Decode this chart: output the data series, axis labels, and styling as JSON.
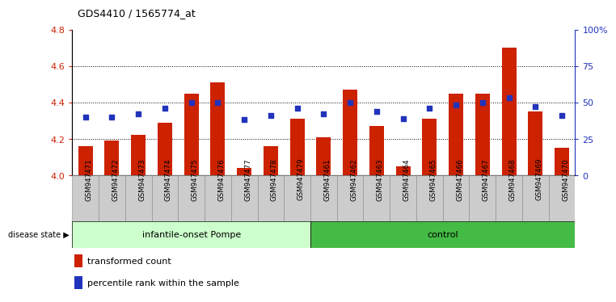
{
  "title": "GDS4410 / 1565774_at",
  "samples": [
    "GSM947471",
    "GSM947472",
    "GSM947473",
    "GSM947474",
    "GSM947475",
    "GSM947476",
    "GSM947477",
    "GSM947478",
    "GSM947479",
    "GSM947461",
    "GSM947462",
    "GSM947463",
    "GSM947464",
    "GSM947465",
    "GSM947466",
    "GSM947467",
    "GSM947468",
    "GSM947469",
    "GSM947470"
  ],
  "bar_values": [
    4.16,
    4.19,
    4.22,
    4.29,
    4.45,
    4.51,
    4.04,
    4.16,
    4.31,
    4.21,
    4.47,
    4.27,
    4.05,
    4.31,
    4.45,
    4.45,
    4.7,
    4.35,
    4.15
  ],
  "dot_values": [
    40,
    40,
    42,
    46,
    50,
    50,
    38,
    41,
    46,
    42,
    50,
    44,
    39,
    46,
    48,
    50,
    53,
    47,
    41
  ],
  "ylim_left": [
    4.0,
    4.8
  ],
  "ylim_right": [
    0,
    100
  ],
  "yticks_left": [
    4.0,
    4.2,
    4.4,
    4.6,
    4.8
  ],
  "yticks_right": [
    0,
    25,
    50,
    75,
    100
  ],
  "ytick_labels_right": [
    "0",
    "25",
    "50",
    "75",
    "100%"
  ],
  "bar_color": "#cc2200",
  "dot_color": "#2233bb",
  "group1_label": "infantile-onset Pompe",
  "group2_label": "control",
  "group1_count": 9,
  "group2_count": 10,
  "group1_color": "#ccffcc",
  "group2_color": "#44bb44",
  "left_axis_color": "#cc2200",
  "right_axis_color": "#2233bb",
  "bar_width": 0.55,
  "legend_items": [
    "transformed count",
    "percentile rank within the sample"
  ],
  "xtick_bg": "#cccccc"
}
